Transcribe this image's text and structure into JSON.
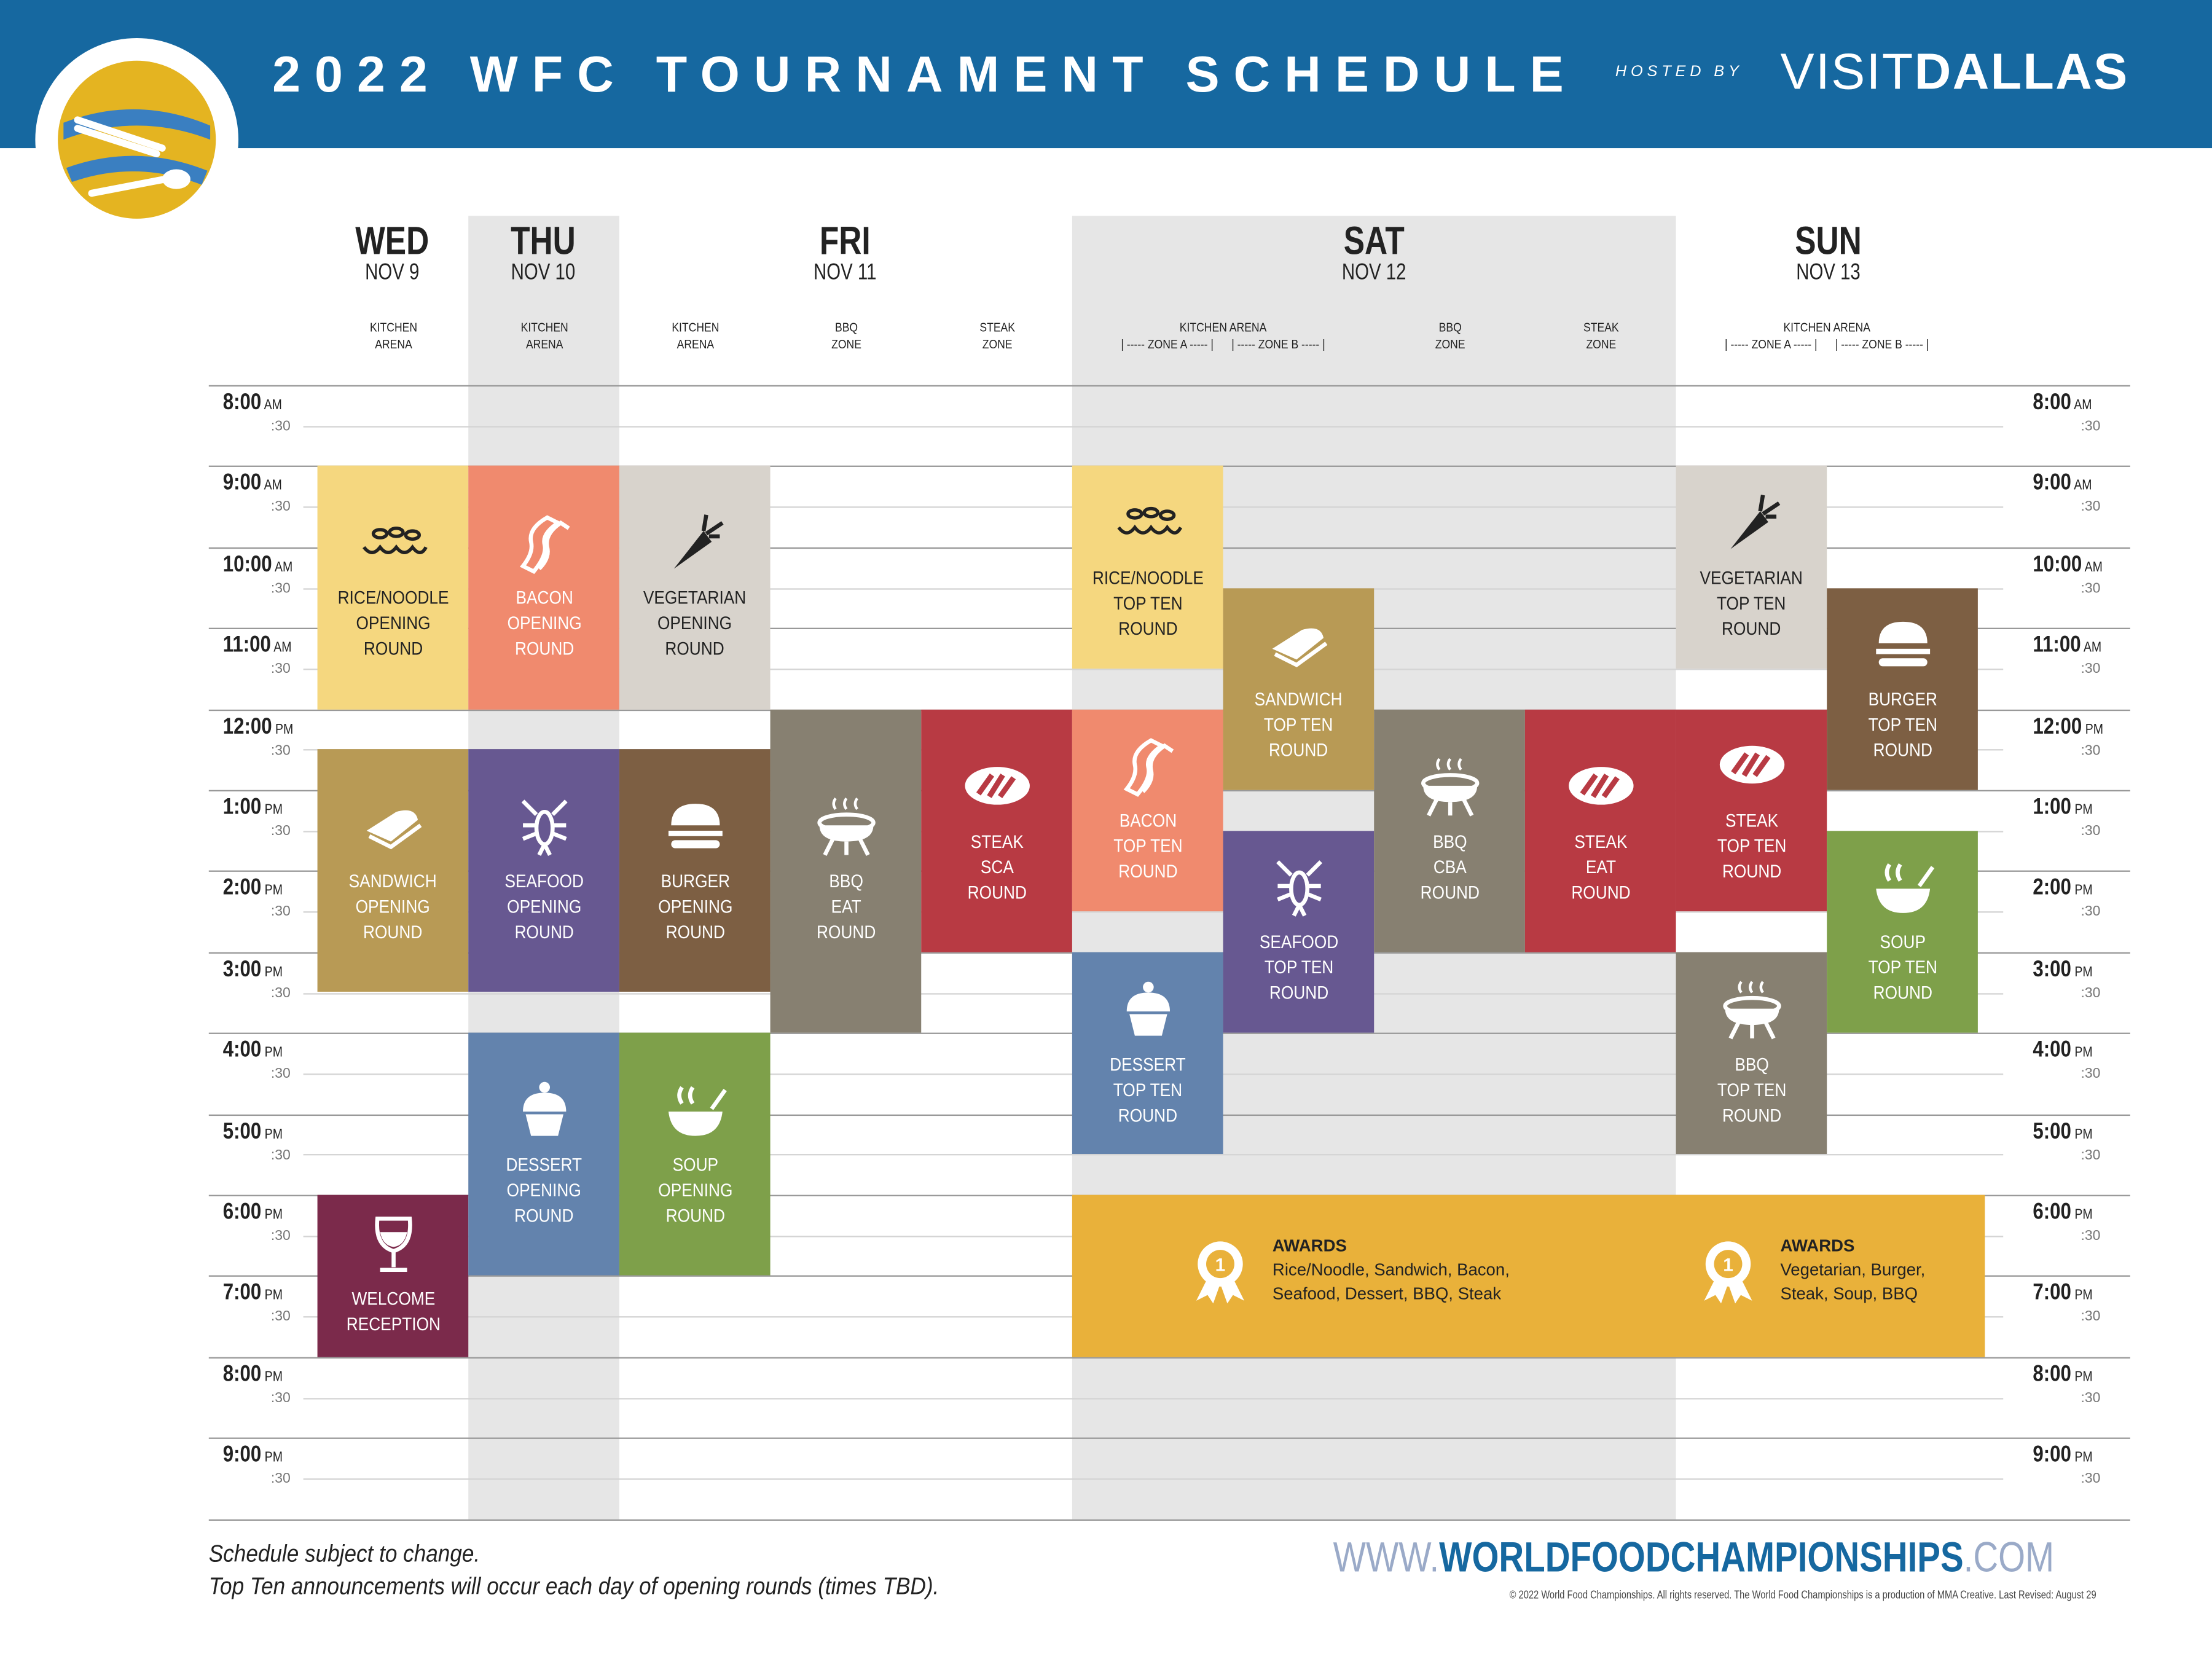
{
  "header": {
    "title": "2022 WFC TOURNAMENT SCHEDULE",
    "hosted_by": "HOSTED BY",
    "sponsor_a": "VISIT",
    "sponsor_b": "DALLAS",
    "colors": {
      "band": "#1668a0"
    }
  },
  "days": [
    {
      "name": "WED",
      "date": "NOV 9",
      "venues": [
        "KITCHEN\nARENA"
      ]
    },
    {
      "name": "THU",
      "date": "NOV 10",
      "venues": [
        "KITCHEN\nARENA"
      ]
    },
    {
      "name": "FRI",
      "date": "NOV 11",
      "venues": [
        "KITCHEN\nARENA",
        "BBQ\nZONE",
        "STEAK\nZONE"
      ]
    },
    {
      "name": "SAT",
      "date": "NOV 12",
      "venues": [
        "KITCHEN ARENA\n| ----- ZONE A ----- |      | ----- ZONE B ----- |",
        "BBQ\nZONE",
        "STEAK\nZONE"
      ]
    },
    {
      "name": "SUN",
      "date": "NOV 13",
      "venues": [
        "KITCHEN ARENA\n| ----- ZONE A ----- |      | ----- ZONE B ----- |"
      ]
    }
  ],
  "times": [
    {
      "hour": "8:00",
      "ampm": "AM"
    },
    {
      "hour": "9:00",
      "ampm": "AM"
    },
    {
      "hour": "10:00",
      "ampm": "AM"
    },
    {
      "hour": "11:00",
      "ampm": "AM"
    },
    {
      "hour": "12:00",
      "ampm": "PM"
    },
    {
      "hour": "1:00",
      "ampm": "PM"
    },
    {
      "hour": "2:00",
      "ampm": "PM"
    },
    {
      "hour": "3:00",
      "ampm": "PM"
    },
    {
      "hour": "4:00",
      "ampm": "PM"
    },
    {
      "hour": "5:00",
      "ampm": "PM"
    },
    {
      "hour": "6:00",
      "ampm": "PM"
    },
    {
      "hour": "7:00",
      "ampm": "PM"
    },
    {
      "hour": "8:00",
      "ampm": "PM"
    },
    {
      "hour": "9:00",
      "ampm": "PM"
    }
  ],
  "half_label": ":30",
  "events": [
    {
      "col": 0,
      "start": 9,
      "end": 12,
      "color": "#f5d77f",
      "icon": "noodles",
      "label": "RICE/NOODLE\nOPENING\nROUND",
      "dark": true
    },
    {
      "col": 0,
      "start": 12.5,
      "end": 15.5,
      "color": "#b89a55",
      "icon": "sandwich",
      "label": "SANDWICH\nOPENING\nROUND"
    },
    {
      "col": 0,
      "start": 18,
      "end": 20,
      "color": "#7b2a4b",
      "icon": "wine",
      "label": "WELCOME\nRECEPTION"
    },
    {
      "col": 1,
      "start": 9,
      "end": 12,
      "color": "#f08a6e",
      "icon": "bacon",
      "label": "BACON\nOPENING\nROUND"
    },
    {
      "col": 1,
      "start": 12.5,
      "end": 15.5,
      "color": "#675891",
      "icon": "lobster",
      "label": "SEAFOOD\nOPENING\nROUND"
    },
    {
      "col": 1,
      "start": 16,
      "end": 19,
      "color": "#6383ad",
      "icon": "cupcake",
      "label": "DESSERT\nOPENING\nROUND"
    },
    {
      "col": 2,
      "start": 9,
      "end": 12,
      "color": "#d8d3cc",
      "icon": "carrot",
      "label": "VEGETARIAN\nOPENING\nROUND",
      "dark": true
    },
    {
      "col": 2,
      "start": 12.5,
      "end": 15.5,
      "color": "#7d5f43",
      "icon": "burger",
      "label": "BURGER\nOPENING\nROUND"
    },
    {
      "col": 2,
      "start": 16,
      "end": 19,
      "color": "#7ea04a",
      "icon": "soup",
      "label": "SOUP\nOPENING\nROUND"
    },
    {
      "col": 3,
      "start": 12,
      "end": 16,
      "color": "#878071",
      "icon": "grill",
      "label": "BBQ\nEAT\nROUND"
    },
    {
      "col": 4,
      "start": 12,
      "end": 15,
      "color": "#b83a43",
      "icon": "steak",
      "label": "STEAK\nSCA\nROUND"
    },
    {
      "col": 5,
      "start": 9,
      "end": 11.5,
      "color": "#f5d77f",
      "icon": "noodles",
      "label": "RICE/NOODLE\nTOP TEN\nROUND",
      "dark": true
    },
    {
      "col": 5,
      "start": 12,
      "end": 14.5,
      "color": "#f08a6e",
      "icon": "bacon",
      "label": "BACON\nTOP TEN\nROUND"
    },
    {
      "col": 5,
      "start": 15,
      "end": 17.5,
      "color": "#6383ad",
      "icon": "cupcake",
      "label": "DESSERT\nTOP TEN\nROUND"
    },
    {
      "col": 6,
      "start": 10.5,
      "end": 13,
      "color": "#b89a55",
      "icon": "sandwich",
      "label": "SANDWICH\nTOP TEN\nROUND"
    },
    {
      "col": 6,
      "start": 13.5,
      "end": 16,
      "color": "#675891",
      "icon": "lobster",
      "label": "SEAFOOD\nTOP TEN\nROUND"
    },
    {
      "col": 7,
      "start": 12,
      "end": 15,
      "color": "#878071",
      "icon": "grill",
      "label": "BBQ\nCBA\nROUND"
    },
    {
      "col": 8,
      "start": 12,
      "end": 15,
      "color": "#b83a43",
      "icon": "steak",
      "label": "STEAK\nEAT\nROUND"
    },
    {
      "col": 9,
      "start": 9,
      "end": 11.5,
      "color": "#d8d3cc",
      "icon": "carrot",
      "label": "VEGETARIAN\nTOP TEN\nROUND",
      "dark": true
    },
    {
      "col": 9,
      "start": 12,
      "end": 14.5,
      "color": "#b83a43",
      "icon": "steak",
      "label": "STEAK\nTOP TEN\nROUND"
    },
    {
      "col": 9,
      "start": 15,
      "end": 17.5,
      "color": "#878071",
      "icon": "grill",
      "label": "BBQ\nTOP TEN\nROUND"
    },
    {
      "col": 10,
      "start": 10.5,
      "end": 13,
      "color": "#7d5f43",
      "icon": "burger",
      "label": "BURGER\nTOP TEN\nROUND"
    },
    {
      "col": 10,
      "start": 13.5,
      "end": 16,
      "color": "#7ea04a",
      "icon": "soup",
      "label": "SOUP\nTOP TEN\nROUND"
    }
  ],
  "awards": {
    "color": "#e9b13a",
    "items": [
      {
        "title": "AWARDS",
        "text": "Rice/Noodle, Sandwich, Bacon, Seafood, Dessert, BBQ, Steak"
      },
      {
        "title": "AWARDS",
        "text": "Vegetarian, Burger, Steak, Soup, BBQ"
      }
    ]
  },
  "footer": {
    "note1": "Schedule subject to change.",
    "note2": "Top Ten announcements will occur each day of opening rounds (times TBD).",
    "url_pre": "WWW.",
    "url_main": "WORLDFOODCHAMPIONSHIPS",
    "url_post": ".COM",
    "copyright": "© 2022 World Food Championships. All rights reserved. The World Food Championships is a production of MMA Creative.  Last Revised: August 29"
  }
}
